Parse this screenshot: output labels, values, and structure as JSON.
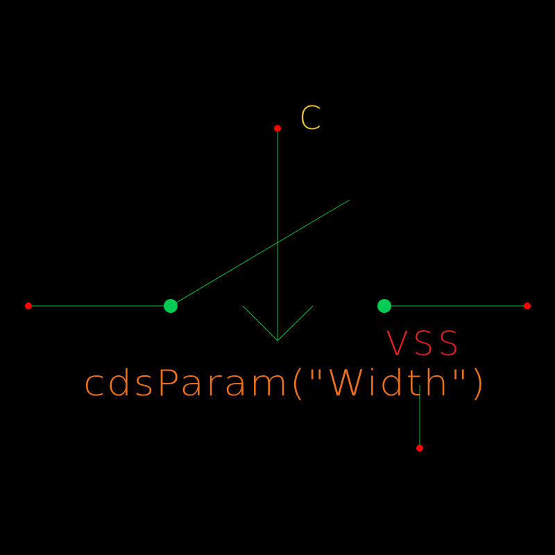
{
  "labels": {
    "control_pin": "C",
    "supply_pin": "VSS",
    "parameter": "cdsParam(\"Width\")"
  },
  "colors": {
    "background": "#000000",
    "wire": "#00c040",
    "terminal_dot": "#ff0000",
    "switch_node": "#00cc55",
    "pin_label": "#e6c23a",
    "vss_label": "#dd2222",
    "param_label": "#e8701e"
  }
}
